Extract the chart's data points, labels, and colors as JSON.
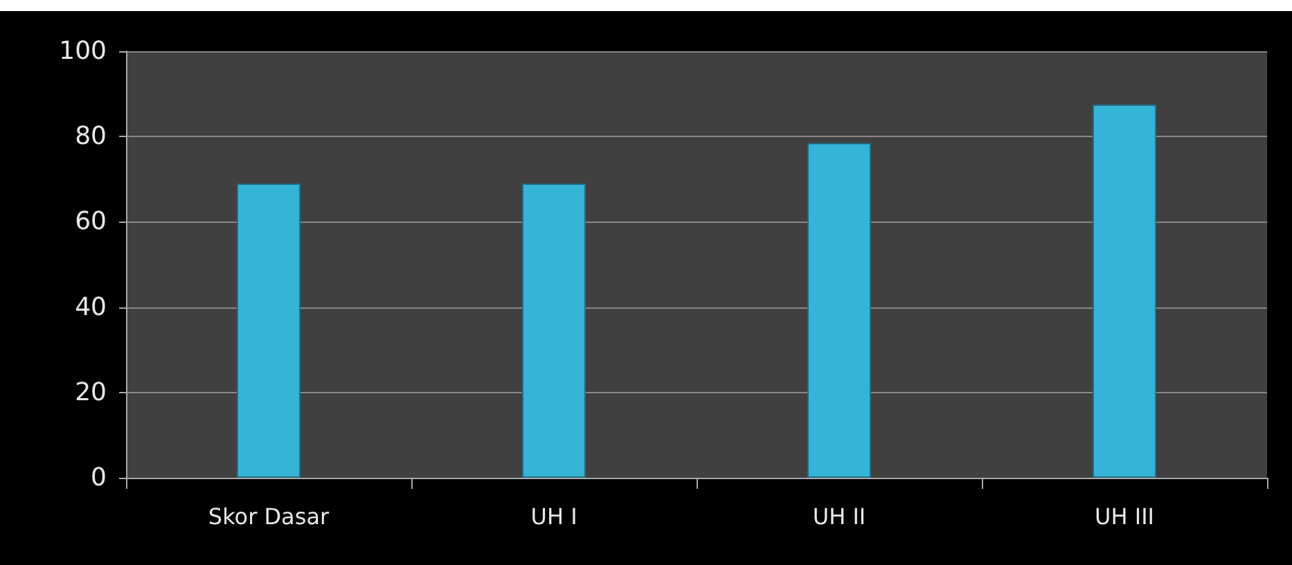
{
  "chart_data": {
    "type": "bar",
    "categories": [
      "Skor Dasar",
      "UH I",
      "UH II",
      "UH III"
    ],
    "values": [
      69,
      69,
      78.5,
      87.5
    ],
    "color": "#36b4d8",
    "ylim": [
      0,
      100
    ],
    "yticks": [
      0,
      20,
      40,
      60,
      80,
      100
    ],
    "grid": "y"
  }
}
